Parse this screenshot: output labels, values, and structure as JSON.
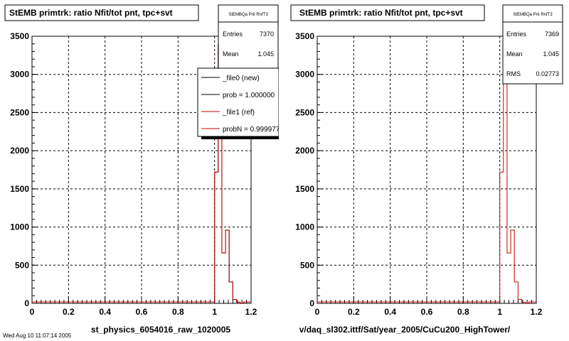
{
  "footer_text": "Wed Aug 10 11:07:14 2005",
  "chart_data": [
    {
      "type": "histogram",
      "title": "StEMB primtrk: ratio Nfit/tot pnt, tpc+svt",
      "xlabel": "st_physics_6054016_raw_1020005",
      "ylabel": "",
      "xlim": [
        0,
        1.2
      ],
      "ylim": [
        0,
        3500
      ],
      "grid": true,
      "x_ticks": [
        "0",
        "0.2",
        "0.4",
        "0.6",
        "0.8",
        "1",
        "1.2"
      ],
      "y_ticks": [
        "0",
        "500",
        "1000",
        "1500",
        "2000",
        "2500",
        "3000",
        "3500"
      ],
      "bin_edges": [
        1.0,
        1.02,
        1.04,
        1.06,
        1.08,
        1.1,
        1.12,
        1.14,
        1.16
      ],
      "series": [
        {
          "name": "_file0 (new)",
          "color": "#000000",
          "values": [
            1720,
            3390,
            660,
            960,
            280,
            50,
            15,
            5
          ]
        },
        {
          "name": "_file1 (ref)",
          "color": "#cc0000",
          "values": [
            1720,
            3390,
            660,
            960,
            280,
            50,
            15,
            5
          ]
        }
      ],
      "stats": {
        "title": "StEMBQa Prk RnfT3",
        "rows": [
          {
            "label": "Entries",
            "value": "7370"
          },
          {
            "label": "Mean",
            "value": "1.045"
          }
        ]
      },
      "legend": {
        "position": "top-right",
        "entries": [
          {
            "label": "_file0 (new)",
            "color": "#000000"
          },
          {
            "label": "prob = 1.000000",
            "color": "#000000"
          },
          {
            "label": "_file1 (ref)",
            "color": "#cc0000"
          },
          {
            "label": "probN = 0.999977",
            "color": "#cc0000"
          }
        ]
      }
    },
    {
      "type": "histogram",
      "title": "StEMB primtrk: ratio Nfit/tot pnt, tpc+svt",
      "xlabel": "v/daq_sl302.ittf/Sat/year_2005/CuCu200_HighTower/",
      "ylabel": "",
      "xlim": [
        0,
        1.2
      ],
      "ylim": [
        0,
        3500
      ],
      "grid": true,
      "x_ticks": [
        "0",
        "0.2",
        "0.4",
        "0.6",
        "0.8",
        "1",
        "1.2"
      ],
      "y_ticks": [
        "0",
        "500",
        "1000",
        "1500",
        "2000",
        "2500",
        "3000",
        "3500"
      ],
      "bin_edges": [
        1.0,
        1.02,
        1.04,
        1.06,
        1.08,
        1.1,
        1.12,
        1.14,
        1.16
      ],
      "series": [
        {
          "name": "",
          "color": "#cc0000",
          "values": [
            1720,
            3390,
            660,
            960,
            280,
            50,
            15,
            5
          ]
        }
      ],
      "stats": {
        "title": "StEMBQa Prk RnfT3",
        "rows": [
          {
            "label": "Entries",
            "value": "7369"
          },
          {
            "label": "Mean",
            "value": "1.045"
          },
          {
            "label": "RMS",
            "value": "0.02773"
          }
        ]
      }
    }
  ]
}
